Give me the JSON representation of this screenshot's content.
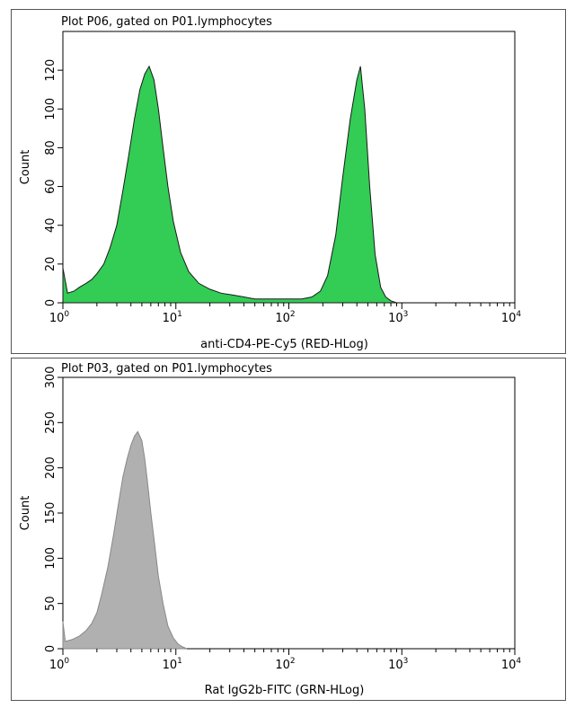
{
  "chart_data": [
    {
      "type": "area",
      "title": "Plot P06, gated on P01.lymphocytes",
      "xlabel": "anti-CD4-PE-Cy5 (RED-HLog)",
      "ylabel": "Count",
      "x_scale": "log",
      "xlim": [
        1,
        10000
      ],
      "ylim": [
        0,
        140
      ],
      "y_ticks": [
        "0",
        "20",
        "40",
        "60",
        "80",
        "100",
        "120"
      ],
      "x_ticks": [
        {
          "base": "10",
          "exp": "0"
        },
        {
          "base": "10",
          "exp": "1"
        },
        {
          "base": "10",
          "exp": "2"
        },
        {
          "base": "10",
          "exp": "3"
        },
        {
          "base": "10",
          "exp": "4"
        }
      ],
      "fill_color": "#33cc55",
      "line_color": "#1a1a1a",
      "grid": false,
      "series": [
        {
          "x": [
            1,
            1.1,
            1.25,
            1.4,
            1.6,
            1.8,
            2.0,
            2.3,
            2.6,
            3.0,
            3.4,
            3.8,
            4.3,
            4.8,
            5.3,
            5.8,
            6.4,
            7.0,
            7.7,
            8.5,
            9.5,
            11,
            13,
            16,
            20,
            25,
            32,
            40,
            50,
            65,
            80,
            100,
            130,
            160,
            190,
            220,
            260,
            300,
            350,
            400,
            430,
            470,
            520,
            580,
            650,
            720,
            800,
            900
          ],
          "y": [
            18,
            5,
            6,
            8,
            10,
            12,
            15,
            20,
            28,
            40,
            58,
            75,
            95,
            110,
            118,
            122,
            115,
            100,
            80,
            60,
            42,
            26,
            16,
            10,
            7,
            5,
            4,
            3,
            2,
            2,
            2,
            2,
            2,
            3,
            6,
            14,
            35,
            65,
            95,
            115,
            122,
            100,
            60,
            25,
            8,
            3,
            1,
            0
          ]
        }
      ]
    },
    {
      "type": "area",
      "title": "Plot P03, gated on P01.lymphocytes",
      "xlabel": "Rat IgG2b-FITC (GRN-HLog)",
      "ylabel": "Count",
      "x_scale": "log",
      "xlim": [
        1,
        10000
      ],
      "ylim": [
        0,
        300
      ],
      "y_ticks": [
        "0",
        "50",
        "100",
        "150",
        "200",
        "250",
        "300"
      ],
      "x_ticks": [
        {
          "base": "10",
          "exp": "0"
        },
        {
          "base": "10",
          "exp": "1"
        },
        {
          "base": "10",
          "exp": "2"
        },
        {
          "base": "10",
          "exp": "3"
        },
        {
          "base": "10",
          "exp": "4"
        }
      ],
      "fill_color": "#b0b0b0",
      "line_color": "#888888",
      "grid": false,
      "series": [
        {
          "x": [
            1,
            1.05,
            1.2,
            1.4,
            1.6,
            1.8,
            2.0,
            2.2,
            2.5,
            2.8,
            3.1,
            3.4,
            3.7,
            4.0,
            4.3,
            4.6,
            5.0,
            5.3,
            5.6,
            6.0,
            6.5,
            7.0,
            7.7,
            8.5,
            9.5,
            10.5,
            11.5,
            12.5
          ],
          "y": [
            30,
            8,
            10,
            14,
            20,
            28,
            40,
            60,
            90,
            125,
            160,
            190,
            210,
            225,
            235,
            240,
            230,
            210,
            185,
            150,
            115,
            80,
            50,
            25,
            12,
            5,
            2,
            0
          ]
        }
      ]
    }
  ]
}
